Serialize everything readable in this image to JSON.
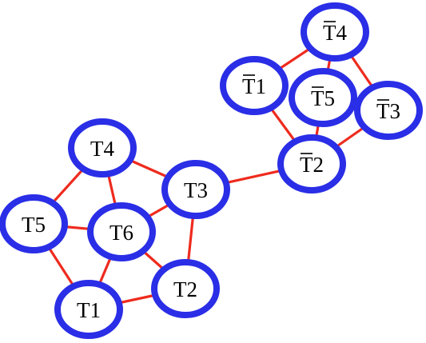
{
  "colors": {
    "node_border": "#2a2ee6",
    "node_fill": "#ffffff",
    "edge": "#ee2b1e",
    "label": "#000000",
    "background": "#ffffff"
  },
  "graphs": [
    {
      "name": "left",
      "nodes": [
        {
          "id": "L_T4",
          "label": "T4",
          "overline": false
        },
        {
          "id": "L_T3",
          "label": "T3",
          "overline": false
        },
        {
          "id": "L_T5",
          "label": "T5",
          "overline": false
        },
        {
          "id": "L_T6",
          "label": "T6",
          "overline": false
        },
        {
          "id": "L_T2",
          "label": "T2",
          "overline": false
        },
        {
          "id": "L_T1",
          "label": "T1",
          "overline": false
        }
      ],
      "edges": [
        [
          "L_T4",
          "L_T3"
        ],
        [
          "L_T4",
          "L_T5"
        ],
        [
          "L_T4",
          "L_T6"
        ],
        [
          "L_T3",
          "L_T6"
        ],
        [
          "L_T3",
          "L_T2"
        ],
        [
          "L_T5",
          "L_T6"
        ],
        [
          "L_T5",
          "L_T1"
        ],
        [
          "L_T6",
          "L_T1"
        ],
        [
          "L_T6",
          "L_T2"
        ],
        [
          "L_T1",
          "L_T2"
        ]
      ]
    },
    {
      "name": "right",
      "nodes": [
        {
          "id": "R_T4",
          "label": "T4",
          "overline": true
        },
        {
          "id": "R_T1",
          "label": "T1",
          "overline": true
        },
        {
          "id": "R_T5",
          "label": "T5",
          "overline": true
        },
        {
          "id": "R_T3",
          "label": "T3",
          "overline": true
        },
        {
          "id": "R_T2",
          "label": "T2",
          "overline": true
        }
      ],
      "edges": [
        [
          "R_T4",
          "R_T1"
        ],
        [
          "R_T4",
          "R_T5"
        ],
        [
          "R_T4",
          "R_T3"
        ],
        [
          "R_T1",
          "R_T2"
        ],
        [
          "R_T5",
          "R_T3"
        ],
        [
          "R_T5",
          "R_T2"
        ],
        [
          "R_T3",
          "R_T2"
        ]
      ]
    }
  ],
  "bridge_edges": [
    [
      "L_T3",
      "R_T2"
    ]
  ]
}
